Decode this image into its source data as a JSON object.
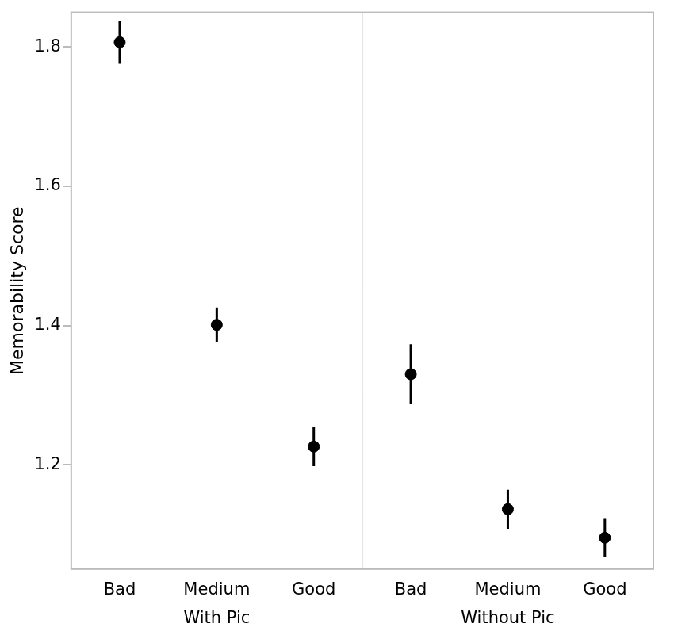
{
  "chart_data": {
    "type": "scatter",
    "ylabel": "Memorability Score",
    "ylim": [
      1.05,
      1.85
    ],
    "yticks": [
      1.2,
      1.4,
      1.6,
      1.8
    ],
    "grid": false,
    "color": "#000000",
    "marker": "circle",
    "panels": [
      {
        "label": "With Pic",
        "categories": [
          "Bad",
          "Medium",
          "Good"
        ],
        "values": [
          1.807,
          1.401,
          1.226
        ],
        "errors": [
          0.031,
          0.025,
          0.028
        ]
      },
      {
        "label": "Without Pic",
        "categories": [
          "Bad",
          "Medium",
          "Good"
        ],
        "values": [
          1.33,
          1.136,
          1.095
        ],
        "errors": [
          0.043,
          0.028,
          0.027
        ]
      }
    ]
  }
}
